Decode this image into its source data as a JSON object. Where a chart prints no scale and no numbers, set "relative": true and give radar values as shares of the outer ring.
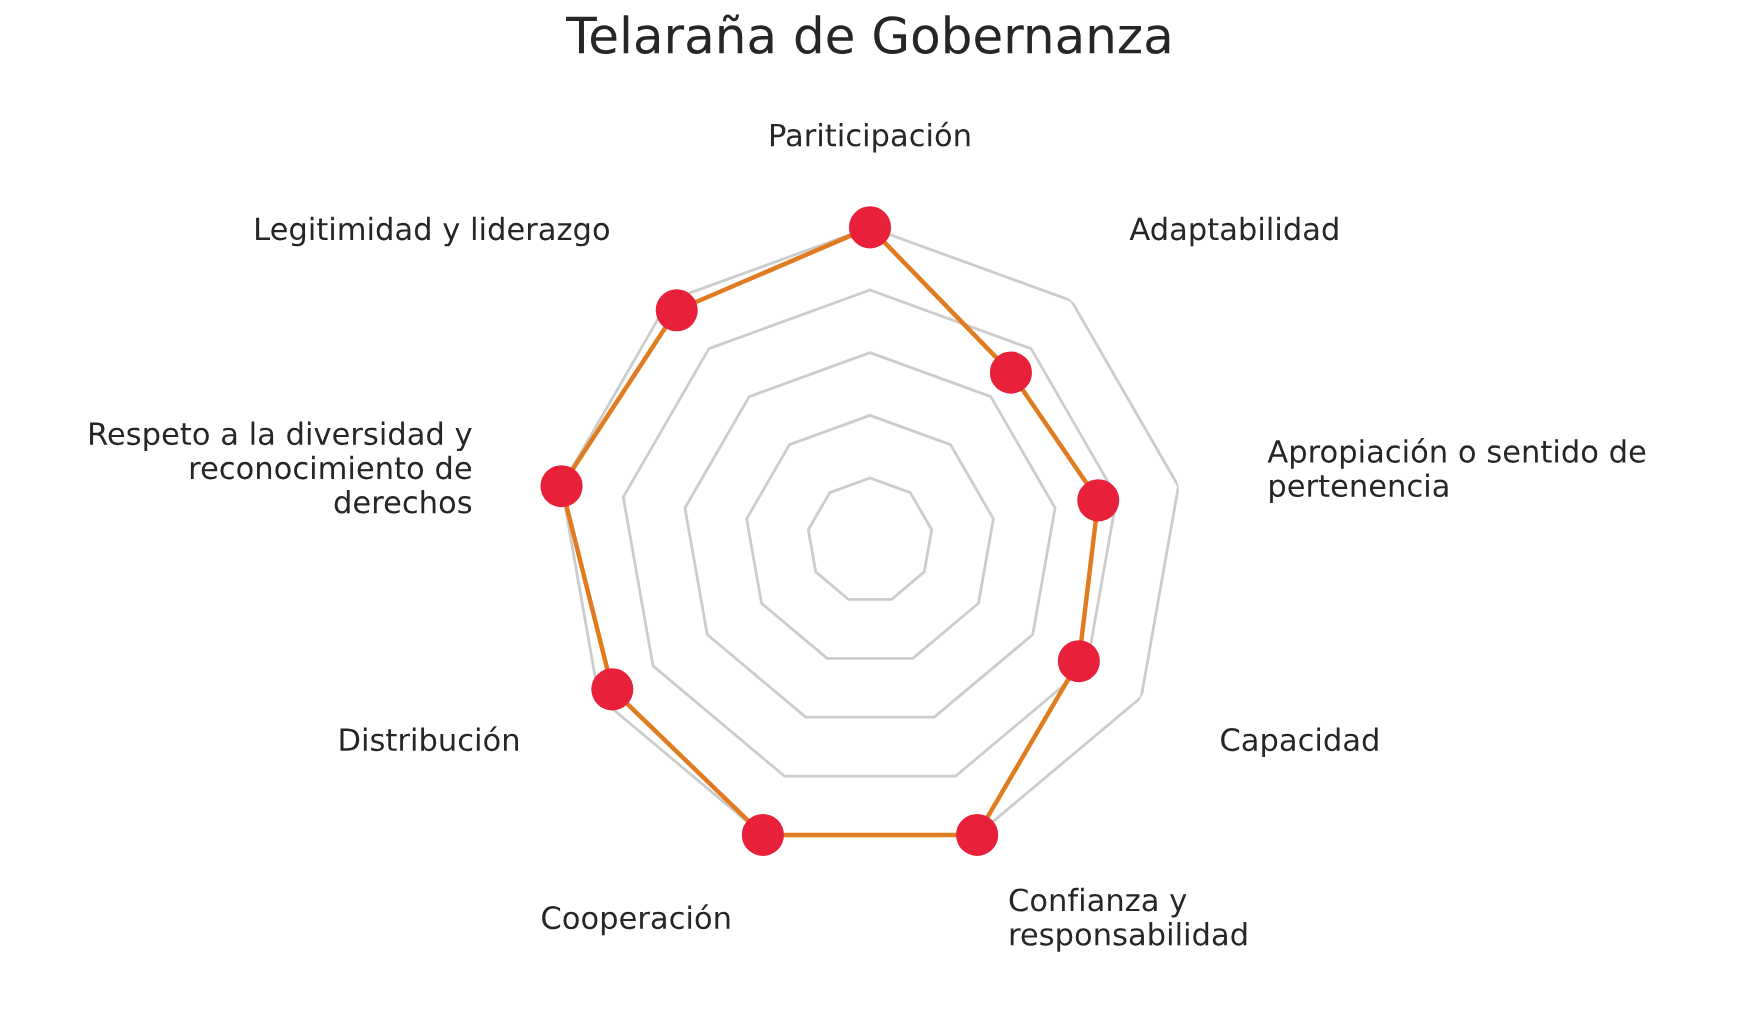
{
  "chart_data": {
    "type": "radar",
    "title": "Telaraña de Gobernanza",
    "categories": [
      "Pariticipación",
      "Adaptabilidad",
      "Apropiación o sentido de\npertenencia",
      "Capacidad",
      "Confianza y\nresponsabilidad",
      "Cooperación",
      "Distribución",
      "Respeto a la diversidad y\nreconocimiento de\nderechos",
      "Legitimidad y liderazgo"
    ],
    "relative": true,
    "grid": true,
    "marker": "circle",
    "series": [
      {
        "color": "#e07b20",
        "colors": [
          "#e8203a",
          "#e8203a",
          "#e8203a",
          "#e8203a",
          "#e8203a",
          "#e8203a",
          "#e8203a",
          "#e8203a",
          "#e8203a"
        ],
        "values": [
          1.0,
          0.7,
          0.74,
          0.77,
          1.0,
          1.0,
          0.95,
          1.0,
          0.96
        ]
      }
    ]
  }
}
